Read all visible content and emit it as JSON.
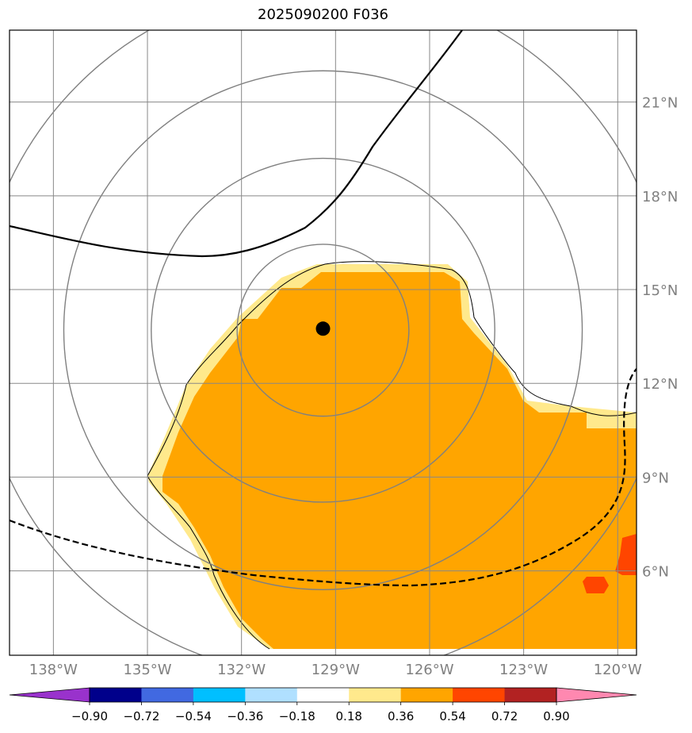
{
  "title": "2025090200 F036",
  "map": {
    "lon_range": [
      -139.4,
      -119.4
    ],
    "lat_range": [
      3.3,
      23.3
    ],
    "lon_ticks": [
      -138,
      -135,
      -132,
      -129,
      -126,
      -123,
      -120
    ],
    "lat_ticks": [
      6,
      9,
      12,
      15,
      18,
      21
    ],
    "lon_tick_labels": [
      "138°W",
      "135°W",
      "132°W",
      "129°W",
      "126°W",
      "123°W",
      "120°W"
    ],
    "lat_tick_labels": [
      "6°N",
      "9°N",
      "12°N",
      "15°N",
      "18°N",
      "21°N"
    ],
    "storm_center": {
      "lon": -129.4,
      "lat": 13.75
    },
    "range_rings_deg": [
      2.75,
      5.5,
      8.3,
      11.1
    ],
    "colors": {
      "gridline": "#888888",
      "range_ring": "#808080",
      "tick_label": "#808080",
      "field_main": "#ffa500",
      "field_edge": "#ffe98c",
      "field_high": "#ff4500",
      "contour": "#000000"
    }
  },
  "colorbar": {
    "levels": [
      "−0.90",
      "−0.72",
      "−0.54",
      "−0.36",
      "−0.18",
      "0.18",
      "0.36",
      "0.54",
      "0.72",
      "0.90"
    ],
    "colors": [
      "#9932cc",
      "#00008b",
      "#4169e1",
      "#00bfff",
      "#b0e0ff",
      "#ffffff",
      "#ffe98c",
      "#ffa500",
      "#ff4500",
      "#b22222",
      "#ff88b0"
    ]
  }
}
